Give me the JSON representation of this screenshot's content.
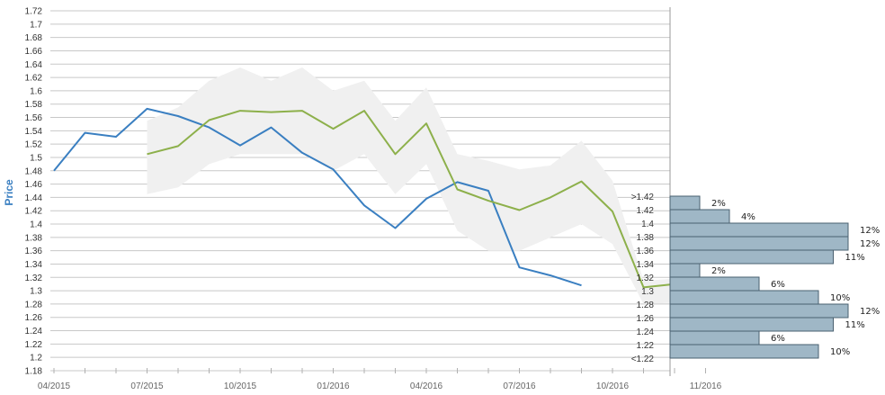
{
  "chart_data": {
    "type": "line",
    "ylabel": "Price",
    "ylim": [
      1.18,
      1.72
    ],
    "y_ticks": [
      "1.18",
      "1.2",
      "1.22",
      "1.24",
      "1.26",
      "1.28",
      "1.3",
      "1.32",
      "1.34",
      "1.36",
      "1.38",
      "1.4",
      "1.42",
      "1.44",
      "1.46",
      "1.48",
      "1.5",
      "1.52",
      "1.54",
      "1.56",
      "1.58",
      "1.6",
      "1.62",
      "1.64",
      "1.66",
      "1.68",
      "1.7",
      "1.72"
    ],
    "x_ticks": [
      "04/2015",
      "07/2015",
      "10/2015",
      "01/2016",
      "04/2016",
      "07/2016",
      "10/2016",
      "11/2016"
    ],
    "grid": true,
    "series": [
      {
        "color": "#3a7fc1",
        "points": [
          [
            0,
            1.48
          ],
          [
            1,
            1.537
          ],
          [
            2,
            1.531
          ],
          [
            3,
            1.573
          ],
          [
            4,
            1.562
          ],
          [
            5,
            1.545
          ],
          [
            6,
            1.518
          ],
          [
            7,
            1.545
          ],
          [
            8,
            1.507
          ],
          [
            9,
            1.482
          ],
          [
            10,
            1.428
          ],
          [
            11,
            1.394
          ],
          [
            12,
            1.438
          ],
          [
            13,
            1.463
          ],
          [
            14,
            1.45
          ],
          [
            15,
            1.335
          ],
          [
            16,
            1.323
          ],
          [
            17,
            1.308
          ]
        ]
      },
      {
        "color": "#8db04b",
        "points": [
          [
            3,
            1.505
          ],
          [
            4,
            1.517
          ],
          [
            5,
            1.556
          ],
          [
            6,
            1.57
          ],
          [
            7,
            1.568
          ],
          [
            8,
            1.57
          ],
          [
            9,
            1.543
          ],
          [
            10,
            1.57
          ],
          [
            11,
            1.505
          ],
          [
            12,
            1.551
          ],
          [
            13,
            1.452
          ],
          [
            14,
            1.435
          ],
          [
            15,
            1.421
          ],
          [
            16,
            1.44
          ],
          [
            17,
            1.464
          ],
          [
            18,
            1.419
          ],
          [
            19,
            1.305
          ],
          [
            20,
            1.31
          ]
        ]
      }
    ],
    "forecast_band": {
      "color": "#f0f0f0",
      "upper": [
        [
          3,
          1.555
        ],
        [
          4,
          1.575
        ],
        [
          5,
          1.615
        ],
        [
          6,
          1.635
        ],
        [
          7,
          1.615
        ],
        [
          8,
          1.635
        ],
        [
          9,
          1.6
        ],
        [
          10,
          1.615
        ],
        [
          11,
          1.555
        ],
        [
          12,
          1.605
        ],
        [
          13,
          1.505
        ],
        [
          14,
          1.495
        ],
        [
          15,
          1.482
        ],
        [
          16,
          1.488
        ],
        [
          17,
          1.525
        ],
        [
          18,
          1.465
        ],
        [
          19,
          1.315
        ],
        [
          20,
          1.318
        ]
      ],
      "lower": [
        [
          3,
          1.445
        ],
        [
          4,
          1.455
        ],
        [
          5,
          1.49
        ],
        [
          6,
          1.505
        ],
        [
          7,
          1.505
        ],
        [
          8,
          1.505
        ],
        [
          9,
          1.48
        ],
        [
          10,
          1.505
        ],
        [
          11,
          1.445
        ],
        [
          12,
          1.49
        ],
        [
          13,
          1.39
        ],
        [
          14,
          1.36
        ],
        [
          15,
          1.36
        ],
        [
          16,
          1.38
        ],
        [
          17,
          1.4
        ],
        [
          18,
          1.37
        ],
        [
          19,
          1.28
        ],
        [
          20,
          1.282
        ]
      ]
    },
    "distribution": {
      "color": "#9fb7c6",
      "bins": [
        {
          "label": ">1.42",
          "percent": 2,
          "text": "2%"
        },
        {
          "label": "1.42",
          "percent": 4,
          "text": "4%"
        },
        {
          "label": "1.4",
          "percent": 12,
          "text": "12%"
        },
        {
          "label": "1.38",
          "percent": 12,
          "text": "12%"
        },
        {
          "label": "1.36",
          "percent": 11,
          "text": "11%"
        },
        {
          "label": "1.34",
          "percent": 2,
          "text": "2%"
        },
        {
          "label": "1.32",
          "percent": 6,
          "text": "6%"
        },
        {
          "label": "1.3",
          "percent": 10,
          "text": "10%"
        },
        {
          "label": "1.28",
          "percent": 12,
          "text": "12%"
        },
        {
          "label": "1.26",
          "percent": 11,
          "text": "11%"
        },
        {
          "label": "1.24",
          "percent": 6,
          "text": "6%"
        },
        {
          "label": "1.22",
          "percent": 10,
          "text": "10%"
        },
        {
          "label": "<1.22",
          "percent": 0,
          "text": ""
        }
      ]
    }
  }
}
